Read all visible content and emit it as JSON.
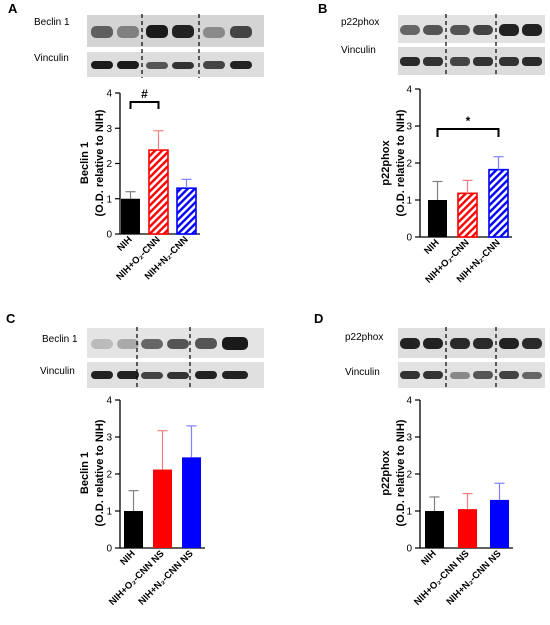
{
  "panels": [
    {
      "letter": "A",
      "blot_top_label": "Beclin 1",
      "blot_bottom_label": "Vinculin",
      "significance": "#",
      "ylabel_line1": "Beclin 1",
      "ylabel_line2": "(O.D. relative to NIH)"
    },
    {
      "letter": "B",
      "blot_top_label": "p22phox",
      "blot_bottom_label": "Vinculin",
      "significance": "*",
      "ylabel_line1": "p22phox",
      "ylabel_line2": "(O.D. relative to NIH)"
    },
    {
      "letter": "C",
      "blot_top_label": "Beclin 1",
      "blot_bottom_label": "Vinculin",
      "significance": "",
      "ylabel_line1": "Beclin 1",
      "ylabel_line2": "(O.D. relative to NIH)"
    },
    {
      "letter": "D",
      "blot_top_label": "p22phox",
      "blot_bottom_label": "Vinculin",
      "significance": "",
      "ylabel_line1": "p22phox",
      "ylabel_line2": "(O.D. relative to NIH)"
    }
  ],
  "colors": {
    "nih": "#000000",
    "o2": "#ff0000",
    "n2": "#0000ff",
    "err_o2": "#f08080",
    "err_n2": "#8080ff",
    "err_nih": "#808080"
  },
  "chart_data": [
    {
      "type": "bar",
      "panel": "A",
      "categories": [
        "NIH",
        "NIH+O₂-CNN",
        "NIH+N₂-CNN"
      ],
      "values": [
        1.0,
        2.38,
        1.3
      ],
      "errors": [
        0.2,
        0.55,
        0.25
      ],
      "hatched": [
        false,
        true,
        true
      ],
      "ylabel": "Beclin 1 (O.D. relative to NIH)",
      "ylim": [
        0,
        4
      ],
      "yticks": [
        0,
        1,
        2,
        3,
        4
      ],
      "significance": {
        "label": "#",
        "between": [
          0,
          1
        ]
      }
    },
    {
      "type": "bar",
      "panel": "B",
      "categories": [
        "NIH",
        "NIH+O₂-CNN",
        "NIH+N₂-CNN"
      ],
      "values": [
        1.0,
        1.18,
        1.82
      ],
      "errors": [
        0.5,
        0.35,
        0.35
      ],
      "hatched": [
        false,
        true,
        true
      ],
      "ylabel": "p22phox (O.D. relative to NIH)",
      "ylim": [
        0,
        4
      ],
      "yticks": [
        0,
        1,
        2,
        3,
        4
      ],
      "significance": {
        "label": "*",
        "between": [
          0,
          2
        ]
      }
    },
    {
      "type": "bar",
      "panel": "C",
      "categories": [
        "NIH",
        "NIH+O₂-CNN NS",
        "NIH+N₂-CNN NS"
      ],
      "values": [
        1.0,
        2.12,
        2.45
      ],
      "errors": [
        0.55,
        1.05,
        0.85
      ],
      "hatched": [
        false,
        false,
        false
      ],
      "ylabel": "Beclin 1 (O.D. relative to NIH)",
      "ylim": [
        0,
        4
      ],
      "yticks": [
        0,
        1,
        2,
        3,
        4
      ]
    },
    {
      "type": "bar",
      "panel": "D",
      "categories": [
        "NIH",
        "NIH+O₂-CNN NS",
        "NIH+N₂-CNN NS"
      ],
      "values": [
        1.0,
        1.05,
        1.3
      ],
      "errors": [
        0.38,
        0.42,
        0.45
      ],
      "hatched": [
        false,
        false,
        false
      ],
      "ylabel": "p22phox (O.D. relative to NIH)",
      "ylim": [
        0,
        4
      ],
      "yticks": [
        0,
        1,
        2,
        3,
        4
      ]
    }
  ]
}
